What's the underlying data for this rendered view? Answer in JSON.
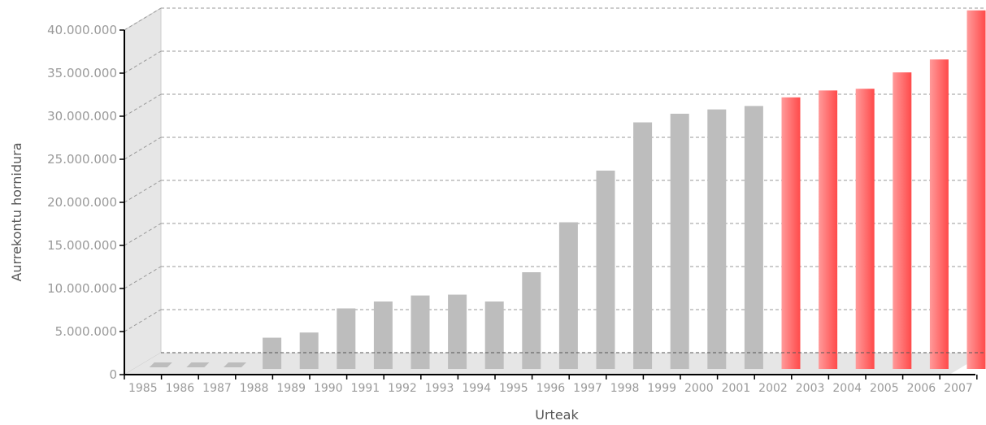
{
  "chart_data": {
    "type": "bar",
    "title": "",
    "xlabel": "Urteak",
    "ylabel": "Aurrekontu hornidura",
    "ylim": [
      0,
      40000000
    ],
    "yticks": [
      "0",
      "5.000.000",
      "10.000.000",
      "15.000.000",
      "20.000.000",
      "25.000.000",
      "30.000.000",
      "35.000.000",
      "40.000.000"
    ],
    "grid": true,
    "categories": [
      "1985",
      "1986",
      "1987",
      "1988",
      "1989",
      "1990",
      "1991",
      "1992",
      "1993",
      "1994",
      "1995",
      "1996",
      "1997",
      "1998",
      "1999",
      "2000",
      "2001",
      "2002",
      "2003",
      "2004",
      "2005",
      "2006",
      "2007"
    ],
    "values": [
      150000,
      150000,
      150000,
      2400000,
      3000000,
      5800000,
      6600000,
      7300000,
      7400000,
      6600000,
      10000000,
      15800000,
      21800000,
      27400000,
      28400000,
      28900000,
      29300000,
      30300000,
      31100000,
      31300000,
      33200000,
      34700000,
      40400000
    ],
    "colors": {
      "grey_bars": "#bdbdbd",
      "red_bars": "#ff5555",
      "red_highlight_from": "2002"
    }
  }
}
